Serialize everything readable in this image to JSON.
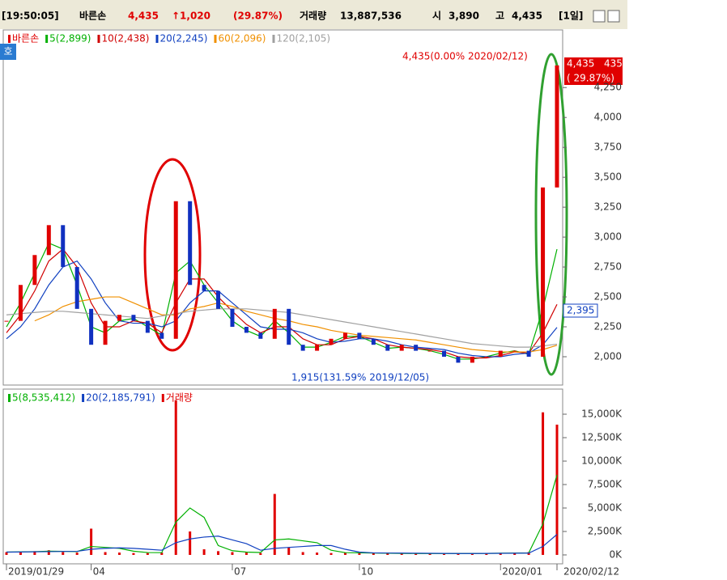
{
  "header": {
    "time": "[19:50:05]",
    "name": "바른손",
    "price": "4,435",
    "change": "↑1,020",
    "pct": "(29.87%)",
    "vol_label": "거래량",
    "vol": "13,887,536",
    "open_label": "시",
    "open": "3,890",
    "high_label": "고",
    "high": "4,435",
    "period": "[1일]",
    "button": "호"
  },
  "chart_data": [
    {
      "type": "candle-line",
      "ylim": [
        1770,
        4725
      ],
      "yticks": [
        {
          "value": 2000,
          "label": "2,000"
        },
        {
          "value": 2250,
          "label": "2,250"
        },
        {
          "value": 2500,
          "label": "2,500"
        },
        {
          "value": 2750,
          "label": "2,750"
        },
        {
          "value": 3000,
          "label": "3,000"
        },
        {
          "value": 3250,
          "label": "3,250"
        },
        {
          "value": 3500,
          "label": "3,500"
        },
        {
          "value": 3750,
          "label": "3,750"
        },
        {
          "value": 4000,
          "label": "4,000"
        },
        {
          "value": 4250,
          "label": "4,250"
        }
      ],
      "series": [
        {
          "name": "바른손",
          "color": "#e00000",
          "values": [
            2300,
            2600,
            2850,
            3100,
            2750,
            2400,
            2100,
            2300,
            2350,
            2300,
            2200,
            2150,
            3300,
            2600,
            2550,
            2400,
            2250,
            2200,
            2150,
            2400,
            2100,
            2050,
            2100,
            2150,
            2200,
            2150,
            2100,
            2050,
            2100,
            2050,
            2050,
            2000,
            1950,
            2000,
            2000,
            2050,
            2050,
            2000,
            3415,
            4435
          ]
        },
        {
          "name": "5(2,899)",
          "color": "#00b000",
          "values": [
            2250,
            2450,
            2700,
            2950,
            2900,
            2600,
            2250,
            2200,
            2300,
            2320,
            2250,
            2180,
            2700,
            2800,
            2600,
            2450,
            2300,
            2220,
            2170,
            2300,
            2200,
            2080,
            2080,
            2120,
            2170,
            2170,
            2120,
            2070,
            2080,
            2070,
            2050,
            2020,
            1980,
            1980,
            2000,
            2030,
            2050,
            2020,
            2400,
            2899
          ]
        },
        {
          "name": "10(2,438)",
          "color": "#d00000",
          "values": [
            2200,
            2350,
            2550,
            2800,
            2900,
            2750,
            2450,
            2250,
            2250,
            2300,
            2280,
            2200,
            2450,
            2650,
            2650,
            2500,
            2380,
            2270,
            2200,
            2250,
            2250,
            2150,
            2100,
            2100,
            2150,
            2170,
            2150,
            2100,
            2080,
            2070,
            2060,
            2040,
            2000,
            1990,
            1990,
            2010,
            2040,
            2030,
            2200,
            2438
          ]
        },
        {
          "name": "20(2,245)",
          "color": "#1040c0",
          "values": [
            2150,
            2250,
            2400,
            2600,
            2750,
            2800,
            2650,
            2450,
            2300,
            2280,
            2280,
            2250,
            2300,
            2450,
            2550,
            2550,
            2450,
            2350,
            2250,
            2230,
            2230,
            2200,
            2150,
            2120,
            2130,
            2150,
            2150,
            2130,
            2100,
            2080,
            2070,
            2060,
            2030,
            2010,
            2000,
            2000,
            2020,
            2030,
            2100,
            2245
          ]
        },
        {
          "name": "60(2,096)",
          "color": "#f09000",
          "values": [
            null,
            null,
            2300,
            2350,
            2420,
            2460,
            2480,
            2500,
            2500,
            2450,
            2400,
            2350,
            2350,
            2400,
            2420,
            2450,
            2420,
            2380,
            2350,
            2320,
            2300,
            2270,
            2250,
            2220,
            2200,
            2180,
            2170,
            2160,
            2150,
            2140,
            2120,
            2100,
            2080,
            2060,
            2050,
            2040,
            2040,
            2040,
            2060,
            2096
          ]
        },
        {
          "name": "120(2,105)",
          "color": "#a0a0a0",
          "values": [
            2350,
            2360,
            2370,
            2380,
            2380,
            2370,
            2360,
            2350,
            2340,
            2330,
            2320,
            2340,
            2360,
            2380,
            2390,
            2400,
            2400,
            2400,
            2390,
            2380,
            2370,
            2350,
            2330,
            2310,
            2290,
            2270,
            2250,
            2230,
            2210,
            2190,
            2170,
            2150,
            2130,
            2110,
            2100,
            2090,
            2080,
            2080,
            2090,
            2105
          ]
        }
      ],
      "annotations": [
        "4,435(0.00% 2020/02/12)",
        "1,915(131.59% 2019/12/05)"
      ],
      "price_box": [
        "4,435",
        "435",
        "( 29.87%)"
      ],
      "ma_box": "2,395"
    },
    {
      "type": "bar",
      "ylim": [
        -950,
        17590
      ],
      "categories": [
        "2019/01/29",
        null,
        null,
        null,
        null,
        null,
        "04",
        null,
        null,
        null,
        null,
        null,
        null,
        null,
        null,
        null,
        "07",
        null,
        null,
        null,
        null,
        null,
        null,
        null,
        null,
        "10",
        null,
        null,
        null,
        null,
        null,
        null,
        null,
        null,
        null,
        "2020/01",
        null,
        null,
        null,
        "2020/02/12"
      ],
      "yticks": [
        {
          "value": 0,
          "label": "0K"
        },
        {
          "value": 2500,
          "label": "2,500K"
        },
        {
          "value": 5000,
          "label": "5,000K"
        },
        {
          "value": 7500,
          "label": "7,500K"
        },
        {
          "value": 10000,
          "label": "10,000K"
        },
        {
          "value": 12500,
          "label": "12,500K"
        },
        {
          "value": 15000,
          "label": "15,000K"
        }
      ],
      "series": [
        {
          "name": "5(8,535,412)",
          "color": "#00b000",
          "values": [
            300,
            320,
            350,
            400,
            380,
            350,
            900,
            800,
            700,
            400,
            250,
            240,
            3500,
            5000,
            4000,
            1000,
            450,
            300,
            260,
            1600,
            1700,
            1500,
            1300,
            500,
            240,
            220,
            200,
            180,
            160,
            150,
            150,
            150,
            150,
            150,
            160,
            180,
            200,
            220,
            3300,
            8535
          ]
        },
        {
          "name": "20(2,185,791)",
          "color": "#1040c0",
          "values": [
            300,
            310,
            330,
            350,
            370,
            380,
            600,
            700,
            750,
            700,
            600,
            500,
            1300,
            1700,
            1900,
            2000,
            1600,
            1200,
            500,
            700,
            800,
            900,
            1000,
            1000,
            600,
            300,
            220,
            200,
            190,
            180,
            170,
            160,
            150,
            150,
            160,
            170,
            180,
            190,
            900,
            2186
          ]
        },
        {
          "name": "거래량",
          "color": "#e00000",
          "values": [
            300,
            350,
            400,
            500,
            300,
            250,
            2800,
            300,
            250,
            200,
            200,
            250,
            16500,
            2500,
            600,
            400,
            300,
            250,
            200,
            6500,
            800,
            300,
            250,
            200,
            250,
            200,
            200,
            150,
            150,
            150,
            150,
            150,
            150,
            150,
            200,
            200,
            200,
            300,
            15200,
            13888
          ]
        }
      ]
    }
  ]
}
